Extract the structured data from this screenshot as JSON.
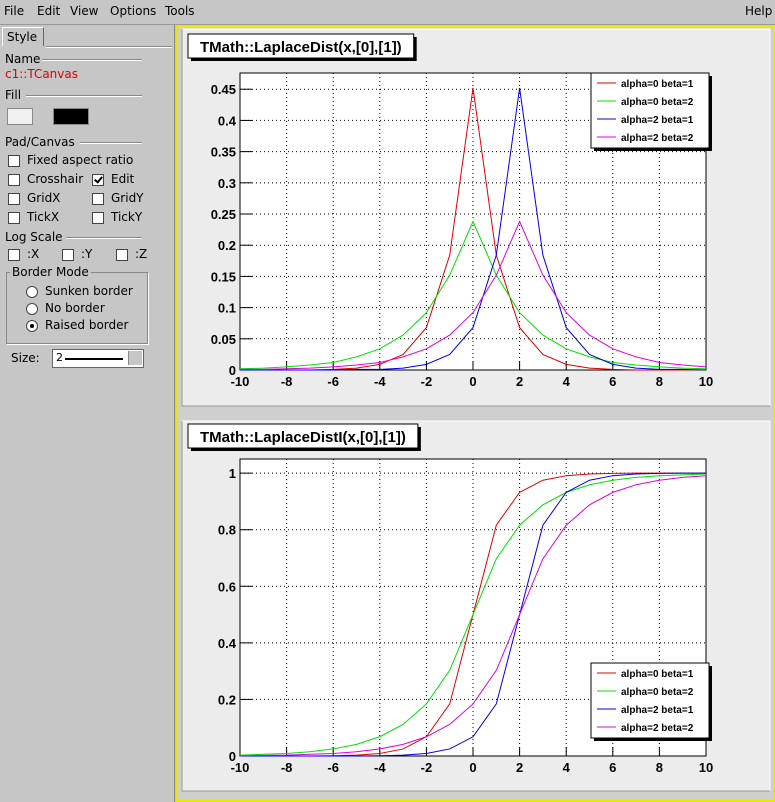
{
  "menu": [
    "File",
    "Edit",
    "View",
    "Options",
    "Tools"
  ],
  "help": "Help",
  "sidebar": {
    "tab": "Style",
    "name_label": "Name",
    "name": "c1::TCanvas",
    "fill_label": "Fill",
    "pad_label": "Pad/Canvas",
    "options": [
      {
        "label": "Fixed aspect ratio",
        "checked": false
      },
      {
        "label": "Crosshair",
        "checked": false
      },
      {
        "label": "Edit",
        "checked": true
      },
      {
        "label": "GridX",
        "checked": false
      },
      {
        "label": "GridY",
        "checked": false
      },
      {
        "label": "TickX",
        "checked": false
      },
      {
        "label": "TickY",
        "checked": false
      }
    ],
    "log_label": "Log Scale",
    "log": [
      {
        "label": ":X",
        "checked": false
      },
      {
        "label": ":Y",
        "checked": false
      },
      {
        "label": ":Z",
        "checked": false
      }
    ],
    "border_label": "Border Mode",
    "border": [
      {
        "label": "Sunken border",
        "selected": false
      },
      {
        "label": "No border",
        "selected": false
      },
      {
        "label": "Raised border",
        "selected": true
      }
    ],
    "size_label": "Size:",
    "size": 2
  },
  "chart_data": [
    {
      "type": "line",
      "title": "TMath::LaplaceDist(x,[0],[1])",
      "grid": true,
      "legend": "upper right",
      "xlim": [
        -10,
        10
      ],
      "xticks": [
        -10,
        -8,
        -6,
        -4,
        -2,
        0,
        2,
        4,
        6,
        8,
        10
      ],
      "ylim": [
        0,
        0.476
      ],
      "yticks": [
        0,
        0.05,
        0.1,
        0.15,
        0.2,
        0.25,
        0.3,
        0.35,
        0.4,
        0.45
      ],
      "x": [
        -10,
        -9,
        -8,
        -7,
        -6,
        -5,
        -4,
        -3,
        -2,
        -1,
        0,
        1,
        2,
        3,
        4,
        5,
        6,
        7,
        8,
        9,
        10
      ],
      "series": [
        {
          "name": "alpha=0 beta=1",
          "color": "#e00000",
          "values": [
            0,
            0,
            0,
            0,
            0.001,
            0.003,
            0.009,
            0.025,
            0.068,
            0.184,
            0.452,
            0.184,
            0.068,
            0.025,
            0.009,
            0.003,
            0.001,
            0,
            0,
            0,
            0
          ]
        },
        {
          "name": "alpha=0 beta=2",
          "color": "#00e000",
          "values": [
            0.002,
            0.003,
            0.005,
            0.008,
            0.012,
            0.021,
            0.034,
            0.056,
            0.092,
            0.152,
            0.238,
            0.152,
            0.092,
            0.056,
            0.034,
            0.021,
            0.012,
            0.008,
            0.005,
            0.003,
            0.002
          ]
        },
        {
          "name": "alpha=2 beta=1",
          "color": "#0000e0",
          "values": [
            0,
            0,
            0,
            0,
            0,
            0.001,
            0.001,
            0.003,
            0.009,
            0.025,
            0.068,
            0.184,
            0.452,
            0.184,
            0.068,
            0.025,
            0.009,
            0.003,
            0.001,
            0.001,
            0
          ]
        },
        {
          "name": "alpha=2 beta=2",
          "color": "#e000e0",
          "values": [
            0.001,
            0.001,
            0.002,
            0.003,
            0.005,
            0.008,
            0.012,
            0.021,
            0.034,
            0.056,
            0.092,
            0.152,
            0.238,
            0.152,
            0.092,
            0.056,
            0.034,
            0.021,
            0.012,
            0.008,
            0.005
          ]
        }
      ]
    },
    {
      "type": "line",
      "title": "TMath::LaplaceDistI(x,[0],[1])",
      "grid": true,
      "legend": "lower right",
      "xlim": [
        -10,
        10
      ],
      "xticks": [
        -10,
        -8,
        -6,
        -4,
        -2,
        0,
        2,
        4,
        6,
        8,
        10
      ],
      "ylim": [
        0,
        1.05
      ],
      "yticks": [
        0,
        0.2,
        0.4,
        0.6,
        0.8,
        1
      ],
      "x": [
        -10,
        -9,
        -8,
        -7,
        -6,
        -5,
        -4,
        -3,
        -2,
        -1,
        0,
        1,
        2,
        3,
        4,
        5,
        6,
        7,
        8,
        9,
        10
      ],
      "series": [
        {
          "name": "alpha=0 beta=1",
          "color": "#e00000",
          "values": [
            0,
            0,
            0,
            0,
            0.001,
            0.003,
            0.009,
            0.025,
            0.068,
            0.184,
            0.5,
            0.816,
            0.932,
            0.975,
            0.991,
            0.997,
            0.999,
            1,
            1,
            1,
            1
          ]
        },
        {
          "name": "alpha=0 beta=2",
          "color": "#00e000",
          "values": [
            0.003,
            0.006,
            0.009,
            0.015,
            0.025,
            0.041,
            0.068,
            0.112,
            0.184,
            0.303,
            0.5,
            0.697,
            0.816,
            0.888,
            0.932,
            0.959,
            0.975,
            0.985,
            0.991,
            0.994,
            0.997
          ]
        },
        {
          "name": "alpha=2 beta=1",
          "color": "#0000e0",
          "values": [
            0,
            0,
            0,
            0,
            0,
            0,
            0.001,
            0.003,
            0.009,
            0.025,
            0.068,
            0.184,
            0.5,
            0.816,
            0.932,
            0.975,
            0.991,
            0.997,
            0.999,
            1,
            1
          ]
        },
        {
          "name": "alpha=2 beta=2",
          "color": "#e000e0",
          "values": [
            0.001,
            0.002,
            0.003,
            0.006,
            0.009,
            0.015,
            0.025,
            0.041,
            0.068,
            0.112,
            0.184,
            0.303,
            0.5,
            0.697,
            0.816,
            0.888,
            0.932,
            0.959,
            0.975,
            0.985,
            0.991
          ]
        }
      ]
    }
  ]
}
